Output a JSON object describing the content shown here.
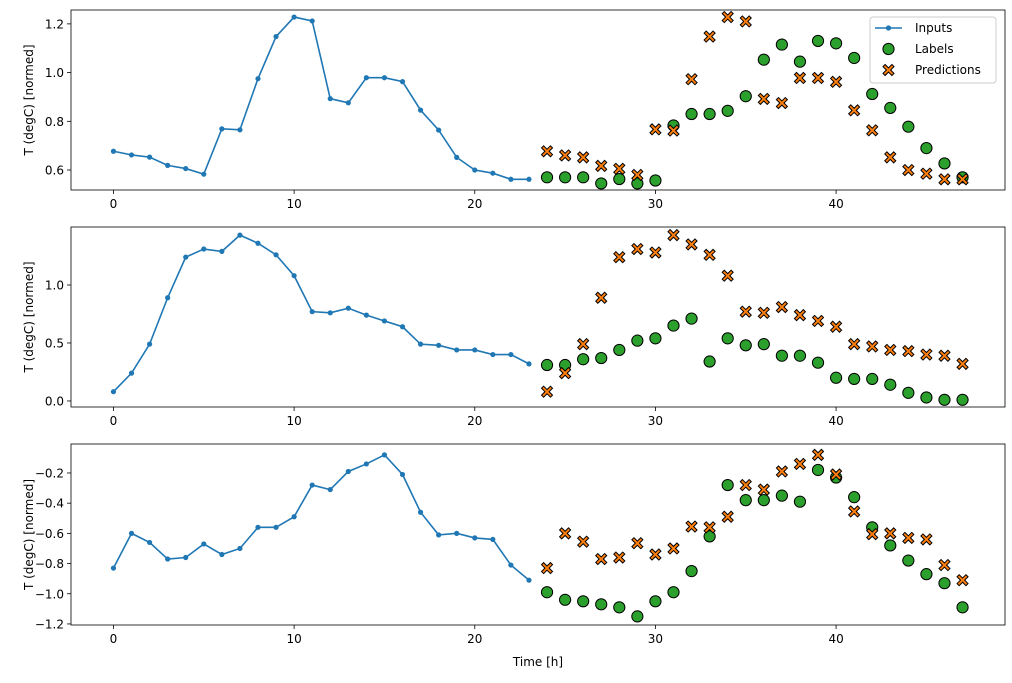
{
  "colors": {
    "inputs": "#1f77b4",
    "labels": "#2ca02c",
    "predictions": "#ff7f0e",
    "edge": "#000000"
  },
  "legend": {
    "placement": "top-right",
    "entries": [
      "Inputs",
      "Labels",
      "Predictions"
    ]
  },
  "chart_data": [
    {
      "type": "line+scatter",
      "ylabel": "T (degC) [normed]",
      "xlabel": "",
      "xlim": [
        -2.35,
        49.35
      ],
      "ylim": [
        0.518,
        1.257
      ],
      "xticks": [
        0,
        10,
        20,
        30,
        40
      ],
      "yticks": [
        0.6,
        0.8,
        1.0,
        1.2
      ],
      "ytick_labels": [
        "0.6",
        "0.8",
        "1.0",
        "1.2"
      ],
      "inputs": {
        "x0": 0,
        "values": [
          0.677,
          0.662,
          0.653,
          0.619,
          0.606,
          0.583,
          0.769,
          0.765,
          0.975,
          1.148,
          1.228,
          1.212,
          0.893,
          0.876,
          0.979,
          0.979,
          0.963,
          0.846,
          0.764,
          0.652,
          0.6,
          0.587,
          0.562,
          0.562
        ]
      },
      "labels": {
        "x0": 24,
        "values": [
          0.57,
          0.57,
          0.57,
          0.545,
          0.563,
          0.545,
          0.557,
          0.783,
          0.83,
          0.83,
          0.843,
          0.903,
          1.053,
          1.115,
          1.045,
          1.13,
          1.12,
          1.06,
          0.912,
          0.855,
          0.778,
          0.69,
          0.627,
          0.57
        ]
      },
      "predictions": {
        "x0": 24,
        "values": [
          0.677,
          0.66,
          0.652,
          0.617,
          0.605,
          0.58,
          0.767,
          0.762,
          0.973,
          1.148,
          1.228,
          1.21,
          0.892,
          0.875,
          0.978,
          0.978,
          0.962,
          0.845,
          0.763,
          0.652,
          0.6,
          0.585,
          0.562,
          0.562
        ]
      },
      "show_legend": true
    },
    {
      "type": "line+scatter",
      "ylabel": "T (degC) [normed]",
      "xlabel": "",
      "xlim": [
        -2.35,
        49.35
      ],
      "ylim": [
        -0.052,
        1.5
      ],
      "xticks": [
        0,
        10,
        20,
        30,
        40
      ],
      "yticks": [
        0.0,
        0.5,
        1.0
      ],
      "ytick_labels": [
        "0.0",
        "0.5",
        "1.0"
      ],
      "inputs": {
        "x0": 0,
        "values": [
          0.08,
          0.24,
          0.49,
          0.89,
          1.24,
          1.31,
          1.29,
          1.43,
          1.36,
          1.26,
          1.08,
          0.77,
          0.76,
          0.8,
          0.74,
          0.69,
          0.64,
          0.49,
          0.48,
          0.44,
          0.44,
          0.4,
          0.4,
          0.32
        ]
      },
      "labels": {
        "x0": 24,
        "values": [
          0.31,
          0.31,
          0.36,
          0.37,
          0.44,
          0.52,
          0.54,
          0.65,
          0.71,
          0.34,
          0.54,
          0.48,
          0.49,
          0.39,
          0.39,
          0.33,
          0.2,
          0.19,
          0.19,
          0.14,
          0.07,
          0.03,
          0.01,
          0.01
        ]
      },
      "predictions": {
        "x0": 24,
        "values": [
          0.08,
          0.24,
          0.49,
          0.89,
          1.24,
          1.31,
          1.28,
          1.43,
          1.35,
          1.26,
          1.08,
          0.77,
          0.76,
          0.81,
          0.74,
          0.69,
          0.64,
          0.49,
          0.47,
          0.44,
          0.43,
          0.4,
          0.39,
          0.32
        ]
      },
      "show_legend": false
    },
    {
      "type": "line+scatter",
      "ylabel": "T (degC) [normed]",
      "xlabel": "Time [h]",
      "xlim": [
        -2.35,
        49.35
      ],
      "ylim": [
        -1.207,
        -0.008
      ],
      "xticks": [
        0,
        10,
        20,
        30,
        40
      ],
      "yticks": [
        -1.2,
        -1.0,
        -0.8,
        -0.6,
        -0.4,
        -0.2
      ],
      "ytick_labels": [
        "−1.2",
        "−1.0",
        "−0.8",
        "−0.6",
        "−0.4",
        "−0.2"
      ],
      "inputs": {
        "x0": 0,
        "values": [
          -0.83,
          -0.6,
          -0.66,
          -0.77,
          -0.76,
          -0.67,
          -0.74,
          -0.7,
          -0.56,
          -0.56,
          -0.49,
          -0.28,
          -0.31,
          -0.19,
          -0.14,
          -0.08,
          -0.21,
          -0.46,
          -0.61,
          -0.6,
          -0.63,
          -0.64,
          -0.81,
          -0.91
        ]
      },
      "labels": {
        "x0": 24,
        "values": [
          -0.99,
          -1.04,
          -1.05,
          -1.07,
          -1.09,
          -1.15,
          -1.05,
          -0.99,
          -0.85,
          -0.62,
          -0.28,
          -0.38,
          -0.38,
          -0.35,
          -0.39,
          -0.18,
          -0.23,
          -0.36,
          -0.56,
          -0.68,
          -0.78,
          -0.87,
          -0.93,
          -1.09
        ]
      },
      "predictions": {
        "x0": 24,
        "values": [
          -0.83,
          -0.6,
          -0.655,
          -0.77,
          -0.76,
          -0.665,
          -0.74,
          -0.7,
          -0.555,
          -0.56,
          -0.49,
          -0.28,
          -0.31,
          -0.19,
          -0.14,
          -0.08,
          -0.21,
          -0.455,
          -0.605,
          -0.6,
          -0.63,
          -0.64,
          -0.81,
          -0.91
        ]
      },
      "show_legend": false
    }
  ]
}
